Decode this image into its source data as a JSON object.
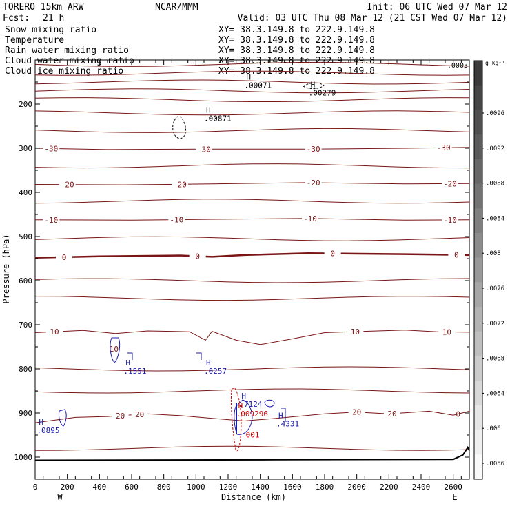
{
  "header": {
    "model": "TORERO  15km ARW",
    "center": "NCAR/MMM",
    "init": "Init: 06 UTC Wed 07 Mar 12",
    "fcst_label": "Fcst:",
    "fcst_value": "21 h",
    "valid": "Valid: 03 UTC Thu 08 Mar 12 (21 CST Wed 07 Mar 12)"
  },
  "legend": [
    {
      "name": "Snow mixing ratio",
      "xy": "XY=  38.3.149.8 to 222.9.149.8",
      "color": "#000000"
    },
    {
      "name": "Temperature",
      "xy": "XY=  38.3.149.8 to 222.9.149.8",
      "color": "#cc0000"
    },
    {
      "name": "Rain water mixing ratio",
      "xy": "XY=  38.3.149.8 to 222.9.149.8",
      "color": "#cc0000"
    },
    {
      "name": "Cloud water mixing ratio",
      "xy": "XY=  38.3.149.8 to 222.9.149.8",
      "color": "#1a1aaa"
    },
    {
      "name": "Cloud ice mixing ratio",
      "xy": "XY=  38.3.149.8 to 222.9.149.8",
      "color": "#000000"
    }
  ],
  "colors": {
    "temperature": "#7a1515",
    "zero_isotherm": "#7a1515",
    "terrain": "#000000",
    "cloud_water": "#1a1aaa",
    "rain_water": "#cc0000",
    "snow": "#000000"
  },
  "chart_data": {
    "type": "cross-section",
    "xlabel": "Distance (km)",
    "ylabel": "Pressure (hPa)",
    "xlim": [
      0,
      2700
    ],
    "ylim": [
      1050,
      100
    ],
    "x_ticks": [
      0,
      200,
      400,
      600,
      800,
      1000,
      1200,
      1400,
      1600,
      1800,
      2000,
      2200,
      2400,
      2600
    ],
    "x_tick_labels": [
      "0",
      "200",
      "400",
      "600",
      "800",
      "1000",
      "1200",
      "1400",
      "1600",
      "1800",
      "2000",
      "2200",
      "2400",
      "2600"
    ],
    "y_ticks": [
      200,
      300,
      400,
      500,
      600,
      700,
      800,
      900,
      1000
    ],
    "y_tick_labels": [
      "200",
      "300",
      "400",
      "500",
      "600",
      "700",
      "800",
      "900",
      "1000"
    ],
    "endpoints": {
      "left": "W",
      "right": "E"
    },
    "temperature_contours": [
      {
        "label": "-30",
        "points": [
          [
            0,
            300
          ],
          [
            450,
            303
          ],
          [
            1000,
            302
          ],
          [
            1700,
            302
          ],
          [
            2300,
            300
          ],
          [
            2700,
            298
          ]
        ],
        "label_x": [
          100,
          1050,
          1730,
          2540
        ]
      },
      {
        "label": "-20",
        "points": [
          [
            0,
            382
          ],
          [
            550,
            383
          ],
          [
            1100,
            381
          ],
          [
            1700,
            378
          ],
          [
            2300,
            381
          ],
          [
            2700,
            380
          ]
        ],
        "label_x": [
          200,
          900,
          1730,
          2580
        ]
      },
      {
        "label": "-10",
        "points": [
          [
            0,
            462
          ],
          [
            600,
            463
          ],
          [
            1100,
            461
          ],
          [
            1700,
            459
          ],
          [
            2300,
            463
          ],
          [
            2700,
            462
          ]
        ],
        "label_x": [
          100,
          880,
          1710,
          2580
        ]
      },
      {
        "label": "0",
        "points": [
          [
            0,
            548
          ],
          [
            400,
            545
          ],
          [
            900,
            543
          ],
          [
            1100,
            546
          ],
          [
            1300,
            542
          ],
          [
            1700,
            538
          ],
          [
            2300,
            540
          ],
          [
            2700,
            542
          ]
        ],
        "label_x": [
          180,
          1010,
          1850,
          2620
        ]
      },
      {
        "label": "10",
        "points": [
          [
            0,
            718
          ],
          [
            300,
            713
          ],
          [
            500,
            720
          ],
          [
            700,
            714
          ],
          [
            960,
            716
          ],
          [
            1060,
            735
          ],
          [
            1100,
            715
          ],
          [
            1250,
            735
          ],
          [
            1400,
            745
          ],
          [
            1600,
            732
          ],
          [
            1800,
            718
          ],
          [
            2300,
            712
          ],
          [
            2500,
            716
          ],
          [
            2700,
            717
          ]
        ],
        "label_x": [
          120,
          1990,
          2560
        ]
      },
      {
        "label": "20",
        "points": [
          [
            0,
            922
          ],
          [
            250,
            910
          ],
          [
            450,
            908
          ],
          [
            700,
            902
          ],
          [
            900,
            906
          ],
          [
            1100,
            912
          ],
          [
            1300,
            918
          ],
          [
            1500,
            912
          ],
          [
            1800,
            902
          ],
          [
            2000,
            898
          ],
          [
            2200,
            902
          ],
          [
            2450,
            896
          ],
          [
            2600,
            905
          ],
          [
            2700,
            896
          ]
        ],
        "label_x": [
          530,
          650,
          2000,
          2220
        ]
      }
    ],
    "temperature_label_values": [
      "-30",
      "-20",
      "-10",
      "0",
      "10",
      "20"
    ],
    "extra_temperature_labels": [
      {
        "text": "10",
        "x": 490,
        "p": 755
      },
      {
        "text": "0",
        "x": 2630,
        "p": 902
      }
    ],
    "maxima_labels": [
      {
        "field": "snow",
        "marker": "H",
        "value": ".00071",
        "x": 1300,
        "p": 148
      },
      {
        "field": "snow",
        "marker": "H",
        "value": ".00279",
        "x": 1700,
        "p": 165
      },
      {
        "field": "snow",
        "marker": "H",
        "value": ".00871",
        "x": 1050,
        "p": 223
      },
      {
        "field": "cloud_water",
        "marker": "H",
        "value": ".1551",
        "x": 550,
        "p": 795
      },
      {
        "field": "cloud_water",
        "marker": "H",
        "value": ".0257",
        "x": 1050,
        "p": 795
      },
      {
        "field": "cloud_water",
        "marker": "H",
        "value": ".0895",
        "x": 10,
        "p": 930
      },
      {
        "field": "cloud_water",
        "marker": "H",
        "value": ".7124",
        "x": 1270,
        "p": 870
      },
      {
        "field": "cloud_water",
        "marker": "H",
        "value": ".4331",
        "x": 1500,
        "p": 915
      },
      {
        "field": "rain_water",
        "marker": "H",
        "value": ".009296",
        "x": 1250,
        "p": 892
      },
      {
        "field": "rain_water",
        "marker": "",
        "value": "001",
        "x": 1310,
        "p": 940
      }
    ],
    "colorbar": {
      "unit": "g kg⁻¹",
      "top_label": ".0003",
      "labels": [
        ".0096",
        ".0092",
        ".0088",
        ".0084",
        ".008",
        ".0076",
        ".0072",
        ".0068",
        ".0064",
        ".006",
        ".0056"
      ],
      "shades": [
        "#3a3a3a",
        "#454545",
        "#505050",
        "#5b5b5b",
        "#676767",
        "#737373",
        "#808080",
        "#8c8c8c",
        "#999999",
        "#a6a6a6",
        "#b3b3b3",
        "#bfbfbf",
        "#cccccc",
        "#d9d9d9",
        "#e6e6e6",
        "#f0f0f0",
        "#fafafa"
      ]
    }
  }
}
